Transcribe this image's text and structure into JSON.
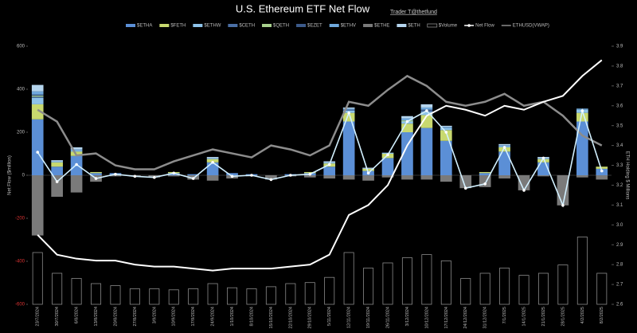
{
  "chart_data": {
    "type": "combo",
    "title": "U.S. Ethereum ETF Net Flow",
    "subtitle": "Trader T@thetfund",
    "ylabel": "Net Flow ($million)",
    "y2label": "ETH Holding $ Millions",
    "categories": [
      "23/7/2024",
      "30/7/2024",
      "6/8/2024",
      "13/8/2024",
      "20/8/2024",
      "27/8/2024",
      "3/9/2024",
      "10/9/2024",
      "17/9/2024",
      "24/9/2024",
      "1/10/2024",
      "8/10/2024",
      "15/10/2024",
      "22/10/2024",
      "29/10/2024",
      "5/11/2024",
      "12/11/2024",
      "19/11/2024",
      "26/11/2024",
      "3/12/2024",
      "10/12/2024",
      "17/12/2024",
      "24/12/2024",
      "31/12/2024",
      "7/1/2025",
      "14/1/2025",
      "21/1/2025",
      "28/1/2025",
      "4/2/2025",
      "8/2/2025"
    ],
    "ylim": [
      -600,
      600
    ],
    "yticks": [
      -600,
      -400,
      -200,
      0,
      200,
      400,
      600
    ],
    "y2lim": [
      2.6,
      3.9
    ],
    "y2ticks": [
      2.6,
      2.7,
      2.8,
      2.9,
      {
        "value": 3,
        "label": "3.0"
      },
      3.1,
      3.2,
      3.3,
      3.4,
      3.5,
      3.6,
      3.7,
      3.8,
      3.9
    ],
    "negative_tick_color": "#d33",
    "series": [
      {
        "name": "$ETHA",
        "color": "#5b8fd6",
        "values": [
          260,
          40,
          90,
          10,
          10,
          0,
          0,
          10,
          5,
          60,
          10,
          5,
          0,
          5,
          10,
          40,
          250,
          20,
          80,
          200,
          220,
          160,
          0,
          10,
          110,
          0,
          60,
          0,
          250,
          30
        ]
      },
      {
        "name": "$FETH",
        "color": "#c8d96f",
        "values": [
          70,
          20,
          20,
          5,
          0,
          0,
          0,
          5,
          0,
          15,
          0,
          0,
          0,
          0,
          5,
          15,
          40,
          10,
          20,
          40,
          60,
          50,
          0,
          5,
          20,
          0,
          15,
          0,
          40,
          10
        ]
      },
      {
        "name": "$ETHW",
        "color": "#8ec3ea",
        "values": [
          30,
          5,
          5,
          0,
          0,
          0,
          0,
          0,
          0,
          5,
          0,
          0,
          0,
          0,
          0,
          5,
          10,
          0,
          5,
          10,
          15,
          10,
          0,
          0,
          5,
          0,
          5,
          0,
          15,
          0
        ]
      },
      {
        "name": "$CETH",
        "color": "#4a6fa5",
        "values": [
          5,
          0,
          0,
          0,
          0,
          0,
          0,
          0,
          0,
          0,
          0,
          0,
          0,
          0,
          0,
          0,
          5,
          0,
          0,
          0,
          5,
          0,
          0,
          0,
          0,
          0,
          0,
          0,
          0,
          0
        ]
      },
      {
        "name": "$QETH",
        "color": "#a8d08d",
        "values": [
          5,
          0,
          0,
          0,
          0,
          0,
          0,
          0,
          0,
          0,
          0,
          0,
          0,
          0,
          0,
          0,
          0,
          0,
          0,
          5,
          0,
          0,
          0,
          0,
          0,
          0,
          0,
          0,
          0,
          0
        ]
      },
      {
        "name": "$EZET",
        "color": "#3c5a8a",
        "values": [
          5,
          0,
          0,
          0,
          0,
          0,
          0,
          0,
          0,
          0,
          0,
          0,
          0,
          0,
          0,
          0,
          0,
          0,
          0,
          0,
          5,
          0,
          0,
          0,
          0,
          0,
          0,
          0,
          0,
          0
        ]
      },
      {
        "name": "$ETHV",
        "color": "#6fa8dc",
        "values": [
          15,
          0,
          5,
          0,
          0,
          0,
          0,
          0,
          0,
          0,
          0,
          0,
          0,
          0,
          0,
          0,
          5,
          0,
          0,
          10,
          10,
          5,
          0,
          0,
          5,
          0,
          0,
          0,
          5,
          0
        ]
      },
      {
        "name": "$ETHE",
        "color": "#7a7a7a",
        "values": [
          -280,
          -100,
          -80,
          -30,
          -5,
          -5,
          -10,
          -5,
          -20,
          -25,
          -15,
          -5,
          -20,
          -5,
          -10,
          -15,
          -20,
          -25,
          -10,
          -20,
          -20,
          -30,
          -60,
          -55,
          -15,
          -70,
          -5,
          -140,
          -10,
          -20
        ]
      },
      {
        "name": "$ETH",
        "color": "#b5d5ee",
        "values": [
          30,
          5,
          10,
          0,
          0,
          0,
          0,
          0,
          0,
          5,
          0,
          0,
          0,
          0,
          0,
          5,
          5,
          5,
          0,
          10,
          15,
          5,
          0,
          0,
          5,
          0,
          5,
          0,
          0,
          0
        ]
      }
    ],
    "volume": {
      "name": "$Volume",
      "color": "#8a8a8a",
      "values": [
        500,
        300,
        250,
        200,
        180,
        150,
        150,
        140,
        150,
        200,
        160,
        150,
        170,
        200,
        210,
        260,
        500,
        350,
        400,
        450,
        480,
        420,
        250,
        300,
        350,
        280,
        300,
        380,
        650,
        300
      ]
    },
    "net_flow": {
      "name": "Net Flow",
      "color": "#d2f0ff",
      "values": [
        107,
        -30,
        50,
        -15,
        5,
        -5,
        -10,
        10,
        -15,
        60,
        -5,
        0,
        -20,
        0,
        5,
        50,
        290,
        10,
        95,
        250,
        300,
        200,
        -60,
        -40,
        130,
        -70,
        80,
        -140,
        300,
        20
      ]
    },
    "vwap": {
      "name": "ETHUSD(VWAP)",
      "color": "#8c8c8c",
      "axis": "y2",
      "values": [
        3.58,
        3.52,
        3.35,
        3.36,
        3.3,
        3.28,
        3.28,
        3.32,
        3.35,
        3.38,
        3.36,
        3.34,
        3.4,
        3.38,
        3.35,
        3.4,
        3.62,
        3.6,
        3.68,
        3.75,
        3.7,
        3.62,
        3.6,
        3.62,
        3.66,
        3.6,
        3.62,
        3.55,
        3.45,
        3.4
      ]
    },
    "holding": {
      "color": "#ffffff",
      "axis": "y2",
      "values": [
        2.95,
        2.85,
        2.83,
        2.82,
        2.82,
        2.8,
        2.79,
        2.79,
        2.78,
        2.77,
        2.78,
        2.78,
        2.78,
        2.79,
        2.8,
        2.85,
        3.05,
        3.1,
        3.2,
        3.4,
        3.55,
        3.6,
        3.58,
        3.55,
        3.6,
        3.58,
        3.62,
        3.65,
        3.75,
        3.83
      ]
    }
  }
}
